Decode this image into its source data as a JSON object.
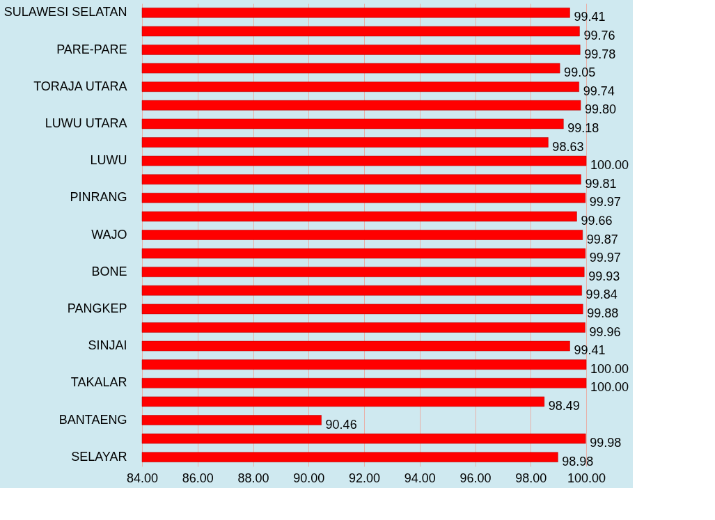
{
  "chart_data": {
    "type": "bar",
    "orientation": "horizontal",
    "categories": [
      "SULAWESI SELATAN",
      null,
      "PARE-PARE",
      null,
      "TORAJA UTARA",
      null,
      "LUWU UTARA",
      null,
      "LUWU",
      null,
      "PINRANG",
      null,
      "WAJO",
      null,
      "BONE",
      null,
      "PANGKEP",
      null,
      "SINJAI",
      null,
      "TAKALAR",
      null,
      "BANTAENG",
      null,
      "SELAYAR"
    ],
    "values": [
      99.41,
      99.76,
      99.78,
      99.05,
      99.74,
      99.8,
      99.18,
      98.63,
      100.0,
      99.81,
      99.97,
      99.66,
      99.87,
      99.97,
      99.93,
      99.84,
      99.88,
      99.96,
      99.41,
      100.0,
      100.0,
      98.49,
      90.46,
      99.98,
      98.98
    ],
    "value_labels": [
      "99.41",
      "99.76",
      "99.78",
      "99.05",
      "99.74",
      "99.80",
      "99.18",
      "98.63",
      "100.00",
      "99.81",
      "99.97",
      "99.66",
      "99.87",
      "99.97",
      "99.93",
      "99.84",
      "99.88",
      "99.96",
      "99.41",
      "100.00",
      "100.00",
      "98.49",
      "90.46",
      "99.98",
      "98.98"
    ],
    "color": "#ff0000",
    "xlim": [
      84,
      100
    ],
    "xticks": [
      {
        "value": 84,
        "label": "84.00"
      },
      {
        "value": 86,
        "label": "86.00"
      },
      {
        "value": 88,
        "label": "88.00"
      },
      {
        "value": 90,
        "label": "90.00"
      },
      {
        "value": 92,
        "label": "92.00"
      },
      {
        "value": 94,
        "label": "94.00"
      },
      {
        "value": 96,
        "label": "96.00"
      },
      {
        "value": 98,
        "label": "98.00"
      },
      {
        "value": 100,
        "label": "100.00"
      }
    ],
    "grid": "x"
  }
}
